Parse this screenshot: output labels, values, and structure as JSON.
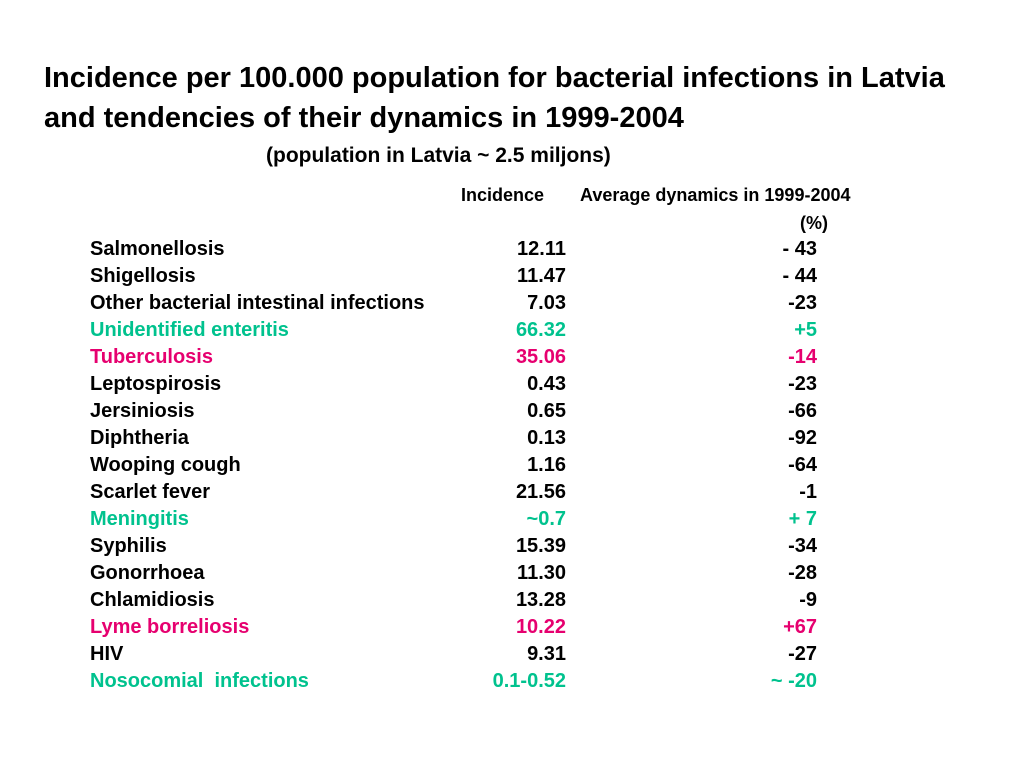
{
  "title": "Incidence per 100.000 population for bacterial infections in Latvia and tendencies of their dynamics in 1999-2004",
  "subtitle": "(population in Latvia ~ 2.5 miljons)",
  "columns": {
    "incidence": "Incidence",
    "dynamics": "Average dynamics in 1999-2004",
    "dynamics_unit": "(%)"
  },
  "colors": {
    "black": "#000000",
    "teal": "#00c28e",
    "pink": "#e6006f"
  },
  "rows": [
    {
      "name": "Salmonellosis",
      "incidence": "12.11",
      "dynamics": "- 43",
      "color": "black"
    },
    {
      "name": "Shigellosis",
      "incidence": "11.47",
      "dynamics": "- 44",
      "color": "black"
    },
    {
      "name": "Other bacterial intestinal infections",
      "incidence": "7.03",
      "dynamics": "-23",
      "color": "black"
    },
    {
      "name": "Unidentified enteritis",
      "incidence": "66.32",
      "dynamics": "+5",
      "color": "teal"
    },
    {
      "name": "Tuberculosis",
      "incidence": "35.06",
      "dynamics": "-14",
      "color": "pink"
    },
    {
      "name": "Leptospirosis",
      "incidence": "0.43",
      "dynamics": "-23",
      "color": "black"
    },
    {
      "name": "Jersiniosis",
      "incidence": "0.65",
      "dynamics": "-66",
      "color": "black"
    },
    {
      "name": "Diphtheria",
      "incidence": "0.13",
      "dynamics": "-92",
      "color": "black"
    },
    {
      "name": "Wooping cough",
      "incidence": "1.16",
      "dynamics": "-64",
      "color": "black"
    },
    {
      "name": "Scarlet fever",
      "incidence": "21.56",
      "dynamics": "-1",
      "color": "black"
    },
    {
      "name": "Meningitis",
      "incidence": "~0.7",
      "dynamics": "+ 7",
      "color": "teal"
    },
    {
      "name": "Syphilis",
      "incidence": "15.39",
      "dynamics": "-34",
      "color": "black"
    },
    {
      "name": "Gonorrhoea",
      "incidence": "11.30",
      "dynamics": "-28",
      "color": "black"
    },
    {
      "name": "Chlamidiosis",
      "incidence": "13.28",
      "dynamics": "-9",
      "color": "black"
    },
    {
      "name": "Lyme borreliosis",
      "incidence": "10.22",
      "dynamics": "+67",
      "color": "pink"
    },
    {
      "name": "HIV",
      "incidence": "9.31",
      "dynamics": "-27",
      "color": "black"
    },
    {
      "name": "Nosocomial  infections",
      "incidence": "0.1-0.52",
      "dynamics": "~ -20",
      "color": "teal"
    }
  ]
}
